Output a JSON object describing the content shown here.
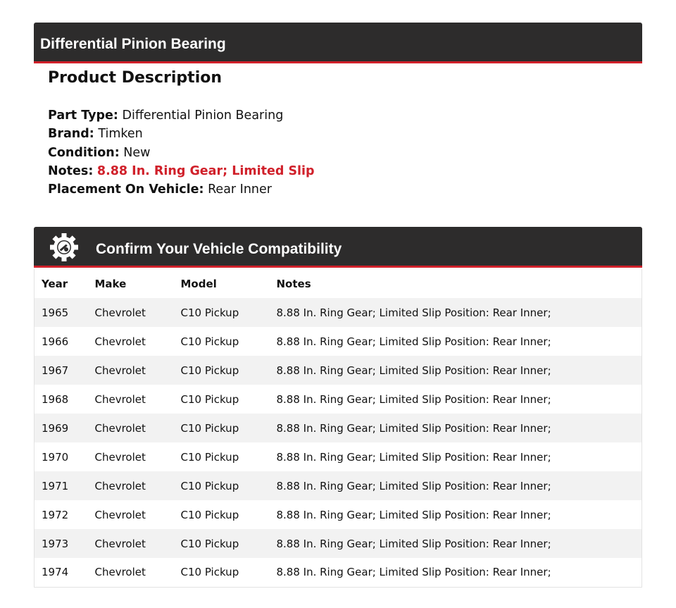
{
  "title_bar": {
    "title": "Differential Pinion Bearing"
  },
  "description": {
    "heading": "Product Description",
    "fields": [
      {
        "label": "Part Type:",
        "value": "Differential Pinion Bearing",
        "highlight": false
      },
      {
        "label": "Brand:",
        "value": "Timken",
        "highlight": false
      },
      {
        "label": "Condition:",
        "value": "New",
        "highlight": false
      },
      {
        "label": "Notes:",
        "value": "8.88 In. Ring Gear; Limited Slip",
        "highlight": true
      },
      {
        "label": "Placement On Vehicle:",
        "value": "Rear Inner",
        "highlight": false
      }
    ]
  },
  "compatibility": {
    "title": "Confirm Your Vehicle Compatibility",
    "icon": "gear-wrench-icon",
    "columns": [
      "Year",
      "Make",
      "Model",
      "Notes"
    ],
    "rows": [
      [
        "1965",
        "Chevrolet",
        "C10 Pickup",
        "8.88 In. Ring Gear; Limited Slip Position: Rear Inner;"
      ],
      [
        "1966",
        "Chevrolet",
        "C10 Pickup",
        "8.88 In. Ring Gear; Limited Slip Position: Rear Inner;"
      ],
      [
        "1967",
        "Chevrolet",
        "C10 Pickup",
        "8.88 In. Ring Gear; Limited Slip Position: Rear Inner;"
      ],
      [
        "1968",
        "Chevrolet",
        "C10 Pickup",
        "8.88 In. Ring Gear; Limited Slip Position: Rear Inner;"
      ],
      [
        "1969",
        "Chevrolet",
        "C10 Pickup",
        "8.88 In. Ring Gear; Limited Slip Position: Rear Inner;"
      ],
      [
        "1970",
        "Chevrolet",
        "C10 Pickup",
        "8.88 In. Ring Gear; Limited Slip Position: Rear Inner;"
      ],
      [
        "1971",
        "Chevrolet",
        "C10 Pickup",
        "8.88 In. Ring Gear; Limited Slip Position: Rear Inner;"
      ],
      [
        "1972",
        "Chevrolet",
        "C10 Pickup",
        "8.88 In. Ring Gear; Limited Slip Position: Rear Inner;"
      ],
      [
        "1973",
        "Chevrolet",
        "C10 Pickup",
        "8.88 In. Ring Gear; Limited Slip Position: Rear Inner;"
      ],
      [
        "1974",
        "Chevrolet",
        "C10 Pickup",
        "8.88 In. Ring Gear; Limited Slip Position: Rear Inner;"
      ]
    ]
  },
  "colors": {
    "bar": "#2d2c2c",
    "accent": "#d0202a",
    "stripe": "#f2f2f2"
  }
}
